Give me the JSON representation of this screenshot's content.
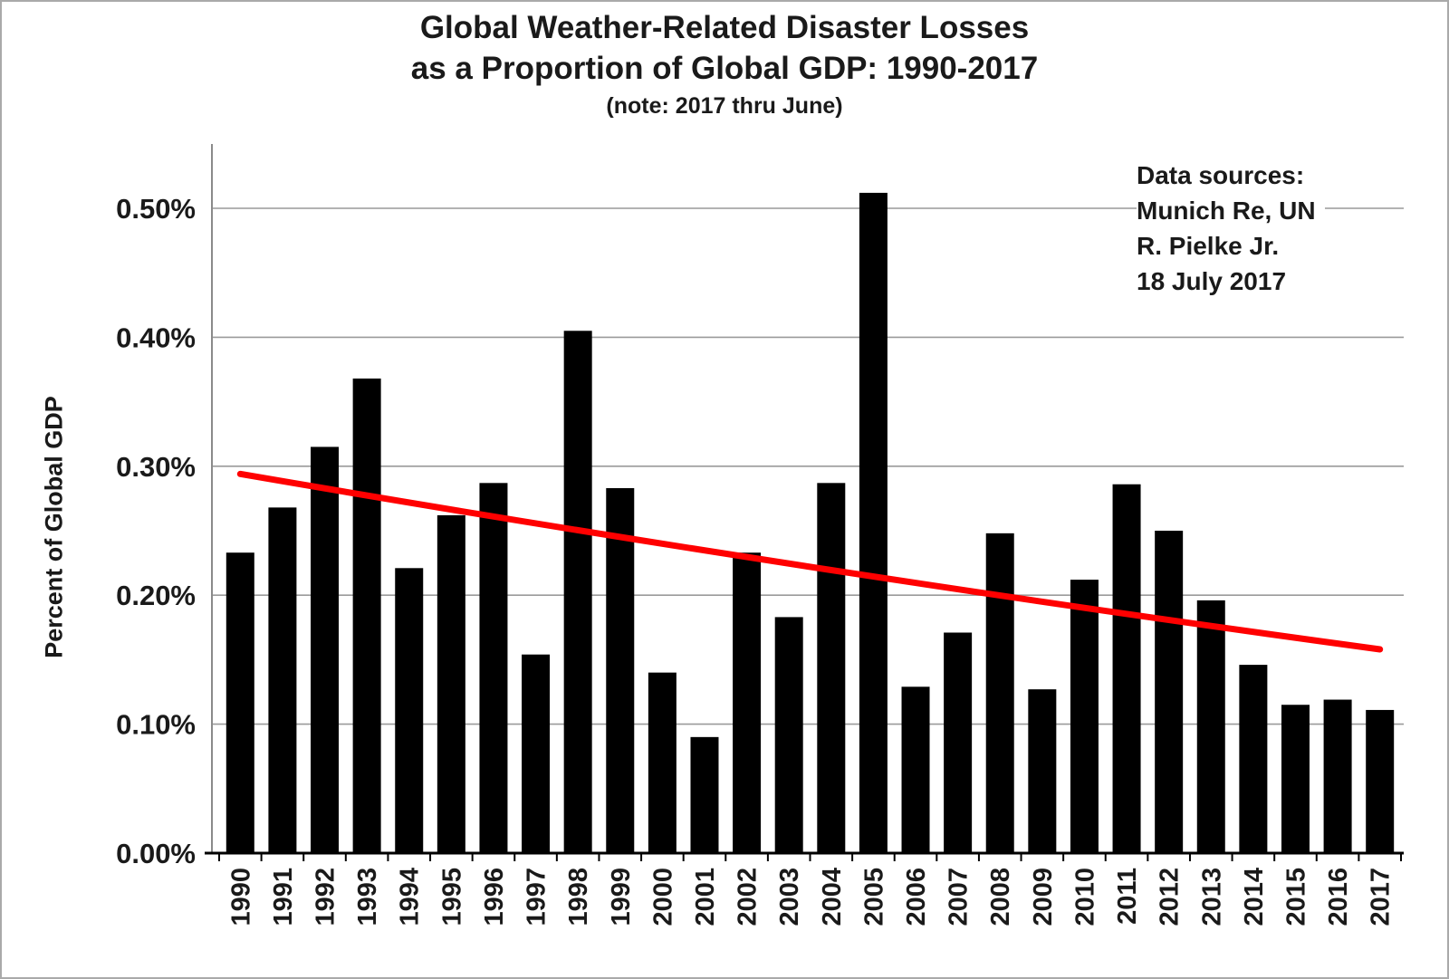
{
  "title": {
    "line1": "Global Weather-Related Disaster Losses",
    "line2": "as a Proportion of Global GDP: 1990-2017",
    "note": "(note: 2017 thru June)"
  },
  "annotation": {
    "lines": [
      "Data sources:",
      "Munich Re, UN",
      "R. Pielke Jr.",
      "18 July 2017"
    ]
  },
  "chart_data": {
    "type": "bar",
    "title": "Global Weather-Related Disaster Losses as a Proportion of Global GDP: 1990-2017 (note: 2017 thru June)",
    "xlabel": "",
    "ylabel": "Percent of Global GDP",
    "ylim": [
      0,
      0.55
    ],
    "grid": true,
    "legend": "none",
    "bar_color": "#000000",
    "y_ticks": [
      0,
      0.1,
      0.2,
      0.3,
      0.4,
      0.5
    ],
    "y_tick_labels": [
      "0.00%",
      "0.10%",
      "0.20%",
      "0.30%",
      "0.40%",
      "0.50%"
    ],
    "categories": [
      "1990",
      "1991",
      "1992",
      "1993",
      "1994",
      "1995",
      "1996",
      "1997",
      "1998",
      "1999",
      "2000",
      "2001",
      "2002",
      "2003",
      "2004",
      "2005",
      "2006",
      "2007",
      "2008",
      "2009",
      "2010",
      "2011",
      "2012",
      "2013",
      "2014",
      "2015",
      "2016",
      "2017"
    ],
    "values": [
      0.233,
      0.268,
      0.315,
      0.368,
      0.221,
      0.262,
      0.287,
      0.154,
      0.405,
      0.283,
      0.14,
      0.09,
      0.233,
      0.183,
      0.287,
      0.512,
      0.129,
      0.171,
      0.248,
      0.127,
      0.212,
      0.286,
      0.25,
      0.196,
      0.146,
      0.115,
      0.119,
      0.111
    ],
    "trendline": {
      "color": "#ff0000",
      "start_value": 0.294,
      "mid_value": 0.222,
      "end_value": 0.158
    }
  }
}
